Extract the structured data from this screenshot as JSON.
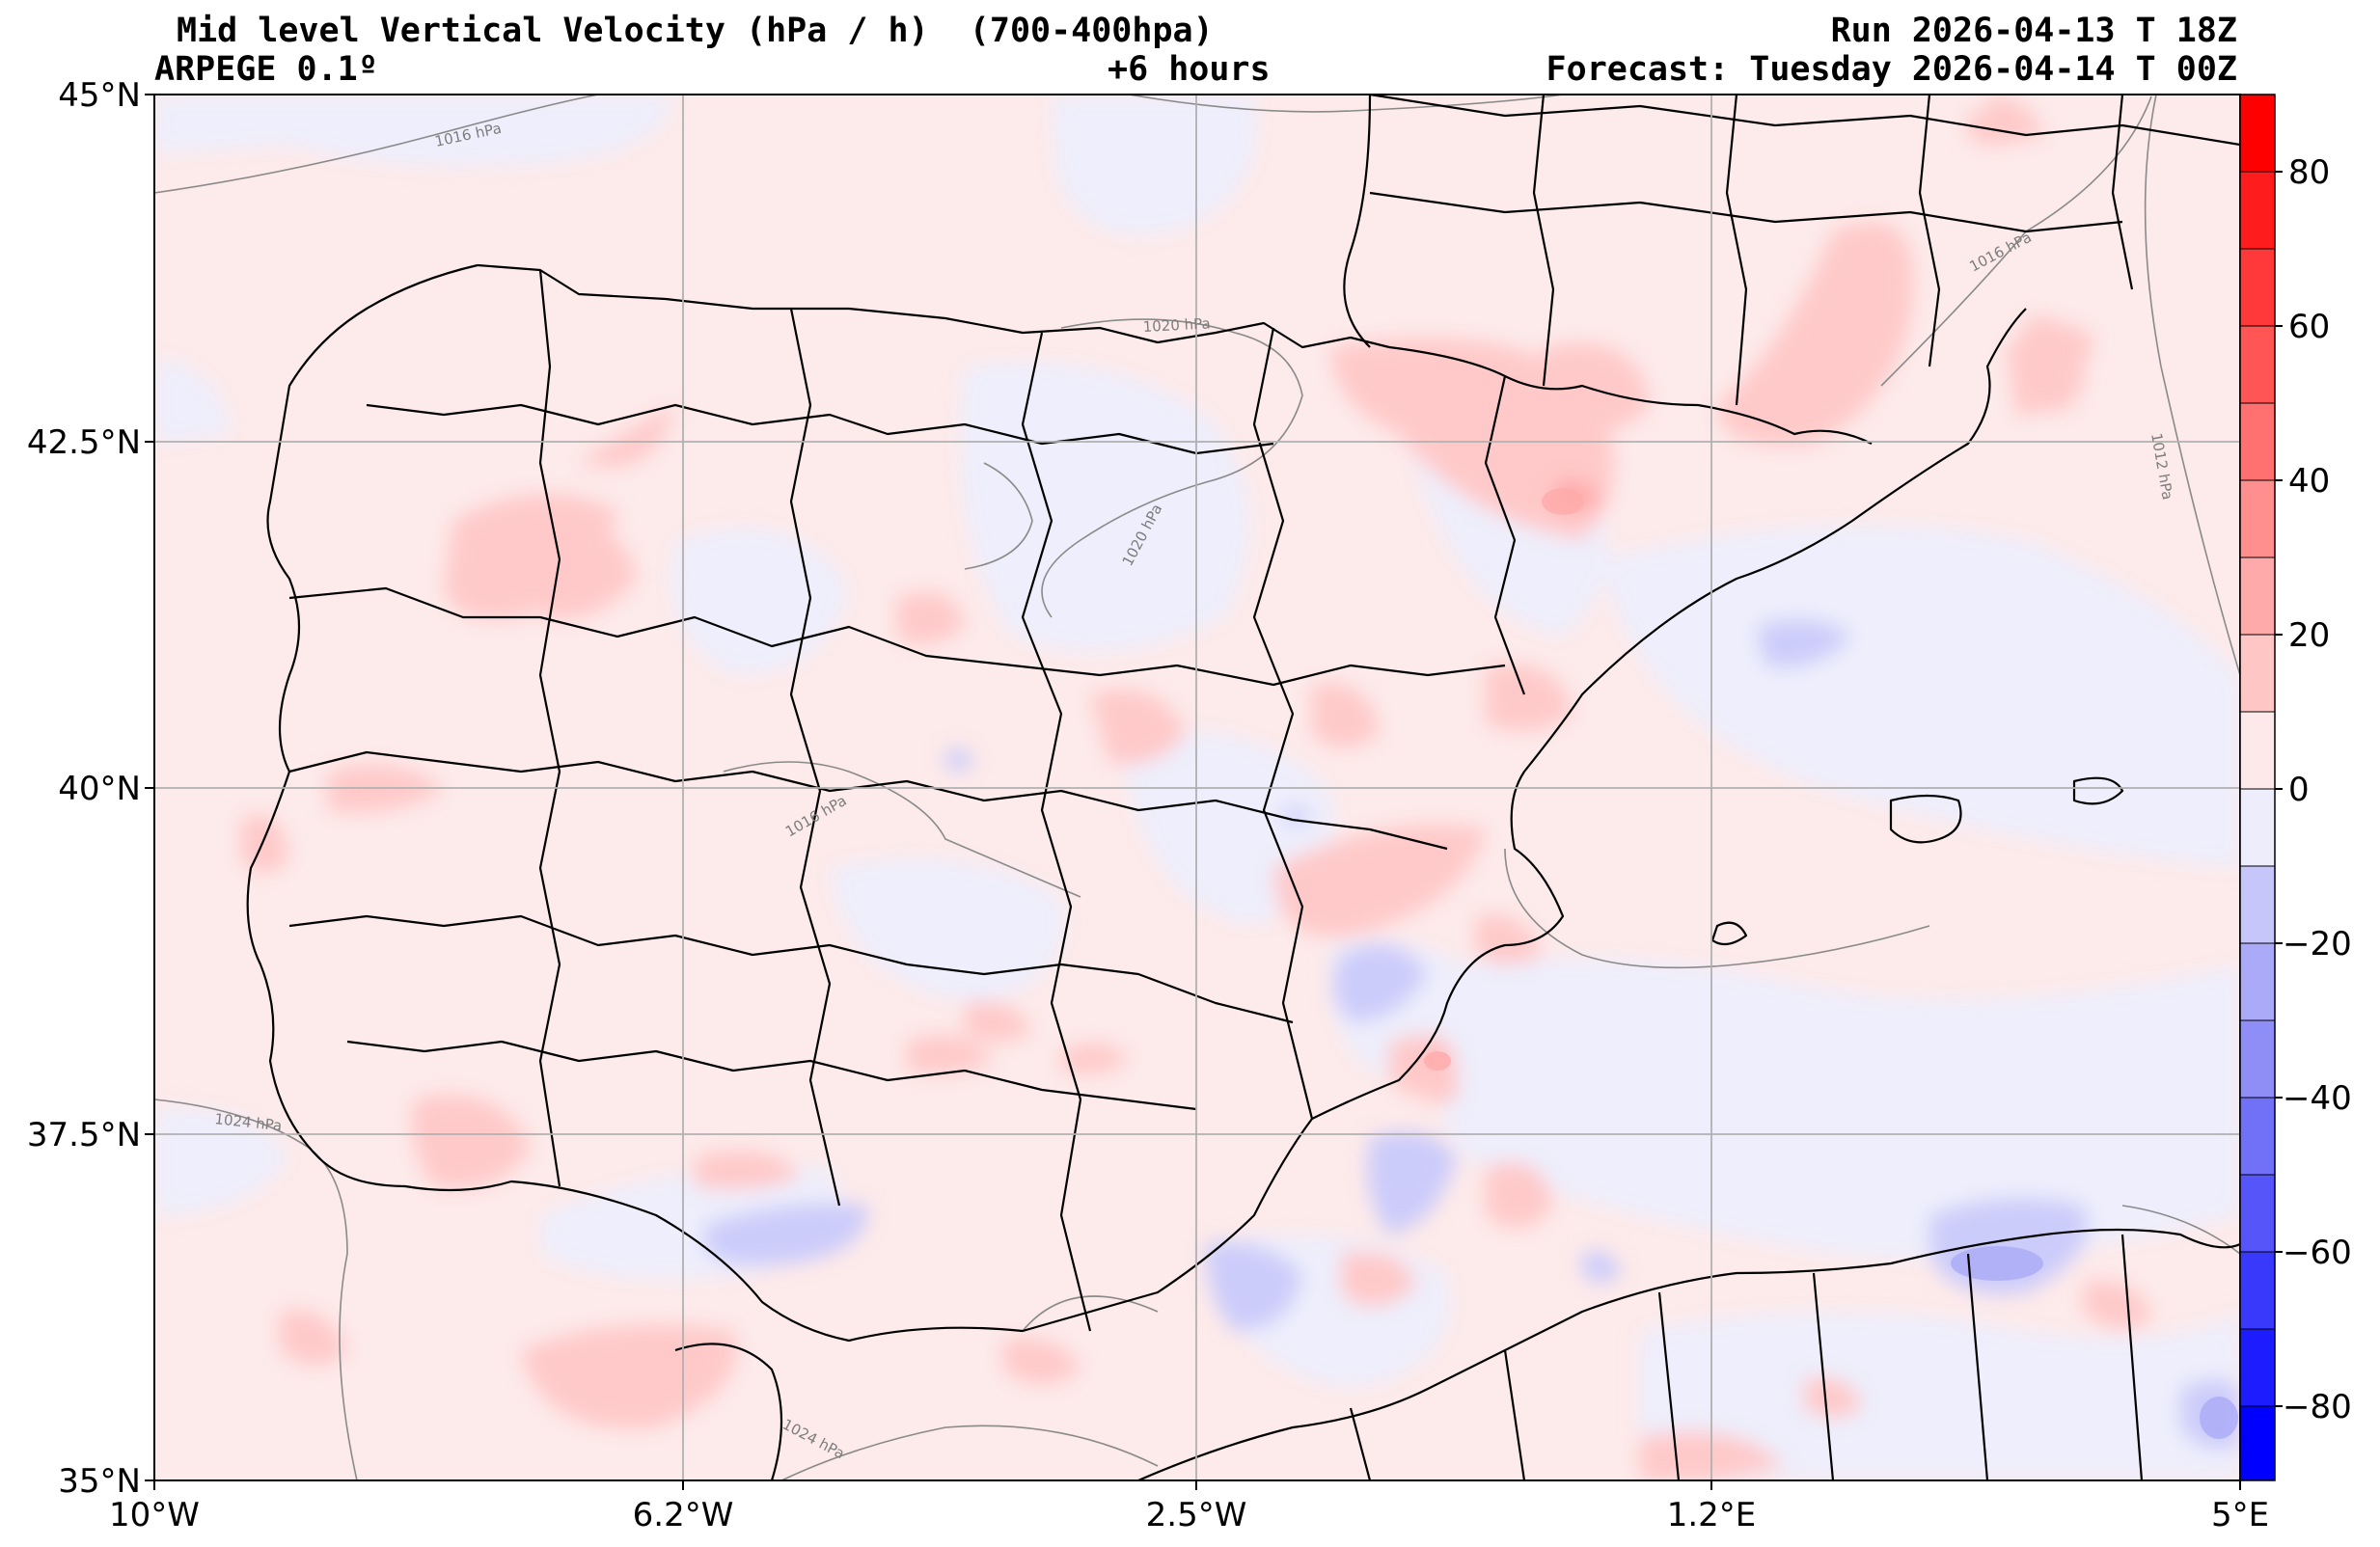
{
  "header": {
    "title": "Mid level Vertical Velocity (hPa / h)  (700-400hpa)",
    "model": "ARPEGE 0.1º",
    "lead": "+6 hours",
    "run": "Run 2026-04-13 T 18Z",
    "forecast": "Forecast: Tuesday 2026-04-14 T 00Z"
  },
  "map": {
    "lon_ticks": [
      "10°W",
      "6.2°W",
      "2.5°W",
      "1.2°E",
      "5°E"
    ],
    "lat_ticks": [
      "45°N",
      "42.5°N",
      "40°N",
      "37.5°N",
      "35°N"
    ],
    "isobar_labels": [
      "1016 hPa",
      "1020 hPa",
      "1020 hPa",
      "1016 hPa",
      "1012 hPa",
      "1016 hPa",
      "1024 hPa",
      "1024 hPa"
    ]
  },
  "colorbar": {
    "ticks": [
      "80",
      "60",
      "40",
      "20",
      "0",
      "−20",
      "−40",
      "−60",
      "−80"
    ],
    "range": [
      -90,
      90
    ],
    "colors": {
      "strong_positive": "#ff0000",
      "weak_positive": "#fde9e9",
      "weak_negative": "#ededfc",
      "strong_negative": "#0000ff"
    }
  }
}
